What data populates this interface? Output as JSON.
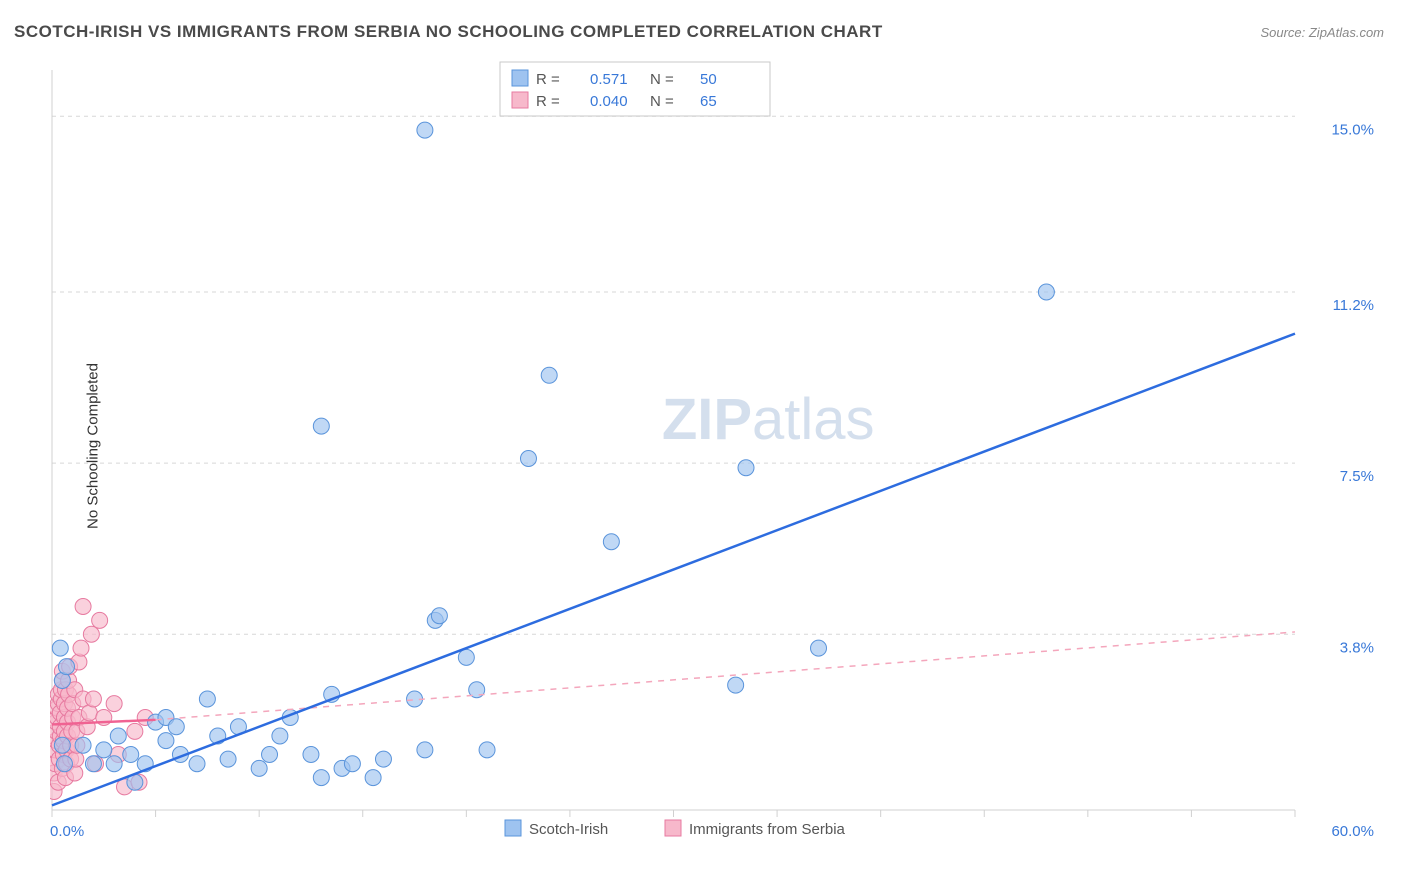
{
  "title": "SCOTCH-IRISH VS IMMIGRANTS FROM SERBIA NO SCHOOLING COMPLETED CORRELATION CHART",
  "source": "Source: ZipAtlas.com",
  "ylabel": "No Schooling Completed",
  "watermark": {
    "bold": "ZIP",
    "light": "atlas"
  },
  "chart": {
    "type": "scatter",
    "background_color": "#ffffff",
    "grid_color": "#d7d7d7",
    "xlim": [
      0,
      60
    ],
    "ylim": [
      0,
      16
    ],
    "xtick_min_label": "0.0%",
    "xtick_max_label": "60.0%",
    "xtick_positions": [
      0,
      5,
      10,
      15,
      20,
      25,
      30,
      35,
      40,
      45,
      50,
      55,
      60
    ],
    "ytick_labels": [
      {
        "y": 3.8,
        "label": "3.8%"
      },
      {
        "y": 7.5,
        "label": "7.5%"
      },
      {
        "y": 11.2,
        "label": "11.2%"
      },
      {
        "y": 15.0,
        "label": "15.0%"
      }
    ],
    "marker_radius": 8,
    "trend_line_width": 2.5,
    "series": [
      {
        "name": "Scotch-Irish",
        "color_fill": "#9ec3f0",
        "color_stroke": "#5a94db",
        "R": "0.571",
        "N": "50",
        "trend": {
          "x1": 0,
          "y1": 0.1,
          "x2": 60,
          "y2": 10.3,
          "style": "solid",
          "color": "#2d6cdf"
        },
        "points": [
          [
            0.4,
            3.5
          ],
          [
            0.5,
            2.8
          ],
          [
            0.7,
            3.1
          ],
          [
            0.5,
            1.4
          ],
          [
            0.6,
            1.0
          ],
          [
            1.5,
            1.4
          ],
          [
            2.0,
            1.0
          ],
          [
            2.5,
            1.3
          ],
          [
            3.0,
            1.0
          ],
          [
            3.2,
            1.6
          ],
          [
            3.8,
            1.2
          ],
          [
            4.5,
            1.0
          ],
          [
            4.0,
            0.6
          ],
          [
            5.0,
            1.9
          ],
          [
            5.5,
            1.5
          ],
          [
            5.5,
            2.0
          ],
          [
            6.0,
            1.8
          ],
          [
            6.2,
            1.2
          ],
          [
            7.0,
            1.0
          ],
          [
            7.5,
            2.4
          ],
          [
            8.0,
            1.6
          ],
          [
            8.5,
            1.1
          ],
          [
            9.0,
            1.8
          ],
          [
            10.0,
            0.9
          ],
          [
            10.5,
            1.2
          ],
          [
            11.0,
            1.6
          ],
          [
            11.5,
            2.0
          ],
          [
            12.5,
            1.2
          ],
          [
            13.0,
            0.7
          ],
          [
            13.5,
            2.5
          ],
          [
            14.0,
            0.9
          ],
          [
            14.5,
            1.0
          ],
          [
            15.5,
            0.7
          ],
          [
            16.0,
            1.1
          ],
          [
            17.5,
            2.4
          ],
          [
            18.0,
            1.3
          ],
          [
            18.5,
            4.1
          ],
          [
            18.7,
            4.2
          ],
          [
            20.0,
            3.3
          ],
          [
            20.5,
            2.6
          ],
          [
            21.0,
            1.3
          ],
          [
            23.0,
            7.6
          ],
          [
            24.0,
            9.4
          ],
          [
            27.0,
            5.8
          ],
          [
            33.5,
            7.4
          ],
          [
            33.0,
            2.7
          ],
          [
            37.0,
            3.5
          ],
          [
            13.0,
            8.3
          ],
          [
            18.0,
            14.7
          ],
          [
            48.0,
            11.2
          ]
        ]
      },
      {
        "name": "Immigrants from Serbia",
        "color_fill": "#f7b8cb",
        "color_stroke": "#e77aa0",
        "R": "0.040",
        "N": "65",
        "trend_solid": {
          "x1": 0,
          "y1": 1.85,
          "x2": 5,
          "y2": 1.95,
          "color": "#f06292"
        },
        "trend_dash": {
          "x1": 5,
          "y1": 1.95,
          "x2": 60,
          "y2": 3.85,
          "color": "#f4a6bc"
        },
        "points": [
          [
            0.1,
            0.4
          ],
          [
            0.1,
            0.8
          ],
          [
            0.15,
            1.0
          ],
          [
            0.15,
            1.3
          ],
          [
            0.2,
            1.5
          ],
          [
            0.2,
            1.7
          ],
          [
            0.2,
            1.9
          ],
          [
            0.25,
            2.0
          ],
          [
            0.25,
            2.2
          ],
          [
            0.3,
            2.3
          ],
          [
            0.3,
            2.5
          ],
          [
            0.3,
            0.6
          ],
          [
            0.35,
            1.1
          ],
          [
            0.35,
            1.4
          ],
          [
            0.4,
            1.6
          ],
          [
            0.4,
            1.8
          ],
          [
            0.4,
            2.1
          ],
          [
            0.45,
            2.4
          ],
          [
            0.45,
            2.6
          ],
          [
            0.5,
            2.8
          ],
          [
            0.5,
            3.0
          ],
          [
            0.5,
            0.9
          ],
          [
            0.55,
            1.2
          ],
          [
            0.55,
            1.5
          ],
          [
            0.6,
            1.7
          ],
          [
            0.6,
            2.0
          ],
          [
            0.6,
            2.3
          ],
          [
            0.65,
            2.6
          ],
          [
            0.65,
            0.7
          ],
          [
            0.7,
            1.0
          ],
          [
            0.7,
            1.3
          ],
          [
            0.75,
            1.6
          ],
          [
            0.75,
            1.9
          ],
          [
            0.75,
            2.2
          ],
          [
            0.8,
            2.5
          ],
          [
            0.8,
            2.8
          ],
          [
            0.85,
            3.1
          ],
          [
            0.9,
            1.1
          ],
          [
            0.9,
            1.4
          ],
          [
            0.95,
            1.7
          ],
          [
            1.0,
            2.0
          ],
          [
            1.0,
            2.3
          ],
          [
            1.1,
            2.6
          ],
          [
            1.1,
            0.8
          ],
          [
            1.15,
            1.1
          ],
          [
            1.2,
            1.4
          ],
          [
            1.2,
            1.7
          ],
          [
            1.3,
            2.0
          ],
          [
            1.3,
            3.2
          ],
          [
            1.4,
            3.5
          ],
          [
            1.5,
            2.4
          ],
          [
            1.5,
            4.4
          ],
          [
            1.7,
            1.8
          ],
          [
            1.8,
            2.1
          ],
          [
            1.9,
            3.8
          ],
          [
            2.0,
            2.4
          ],
          [
            2.1,
            1.0
          ],
          [
            2.3,
            4.1
          ],
          [
            2.5,
            2.0
          ],
          [
            3.0,
            2.3
          ],
          [
            3.2,
            1.2
          ],
          [
            3.5,
            0.5
          ],
          [
            4.0,
            1.7
          ],
          [
            4.2,
            0.6
          ],
          [
            4.5,
            2.0
          ]
        ]
      }
    ],
    "stats_legend": {
      "r_label": "R  =",
      "n_label": "N  ="
    },
    "bottom_legend": [
      {
        "swatch": "blue",
        "label": "Scotch-Irish"
      },
      {
        "swatch": "pink",
        "label": "Immigrants from Serbia"
      }
    ]
  }
}
